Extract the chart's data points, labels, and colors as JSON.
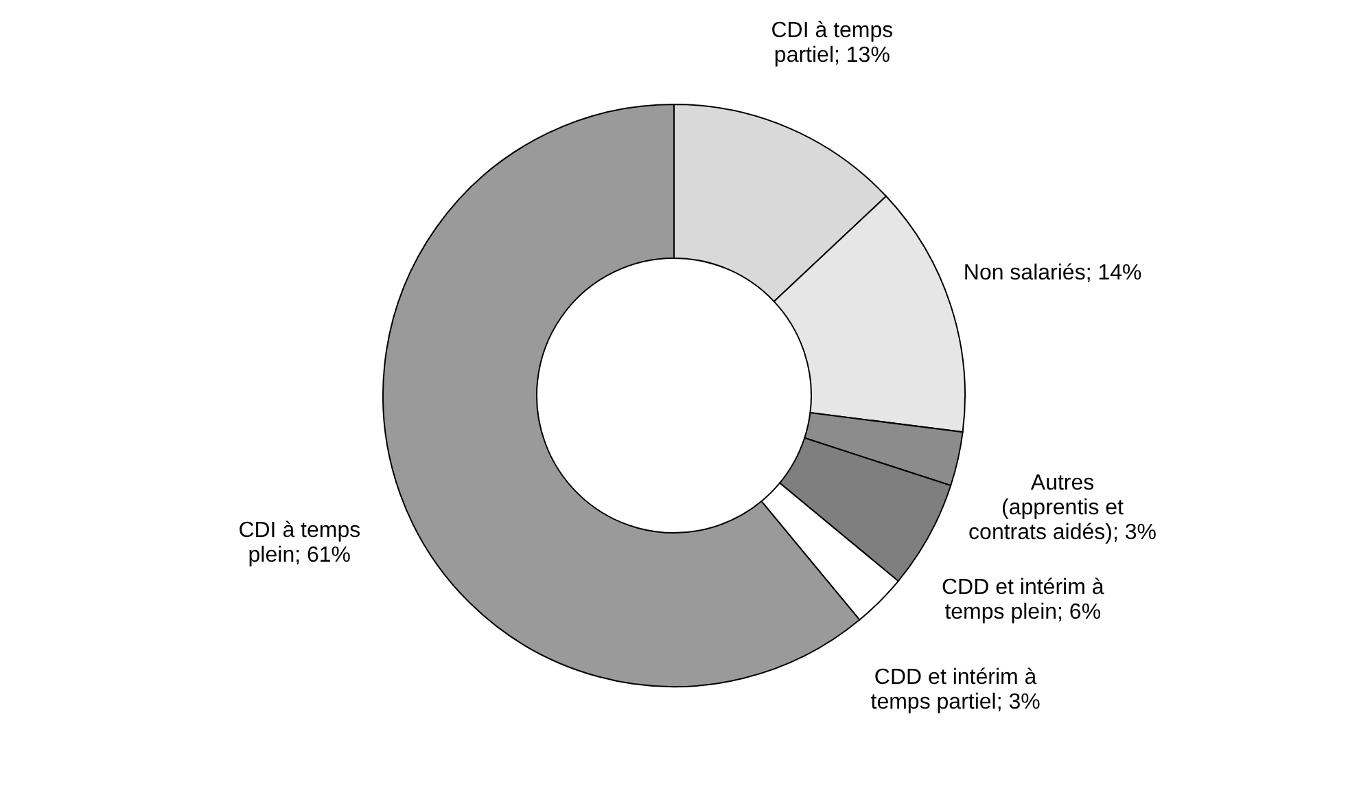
{
  "chart_data": {
    "type": "donut",
    "categories": [
      "CDI à temps partiel",
      "Non salariés",
      "Autres (apprentis et contrats aidés)",
      "CDD et intérim à temps plein",
      "CDD et intérim à temps partiel",
      "CDI à temps plein"
    ],
    "values": [
      13,
      14,
      3,
      6,
      3,
      61
    ],
    "colors": [
      "#d9d9d9",
      "#e6e6e6",
      "#8c8c8c",
      "#7f7f7f",
      "#ffffff",
      "#9a9a9a"
    ],
    "value_labels": [
      "13%",
      "14%",
      "3%",
      "6%",
      "3%",
      "61%"
    ]
  }
}
